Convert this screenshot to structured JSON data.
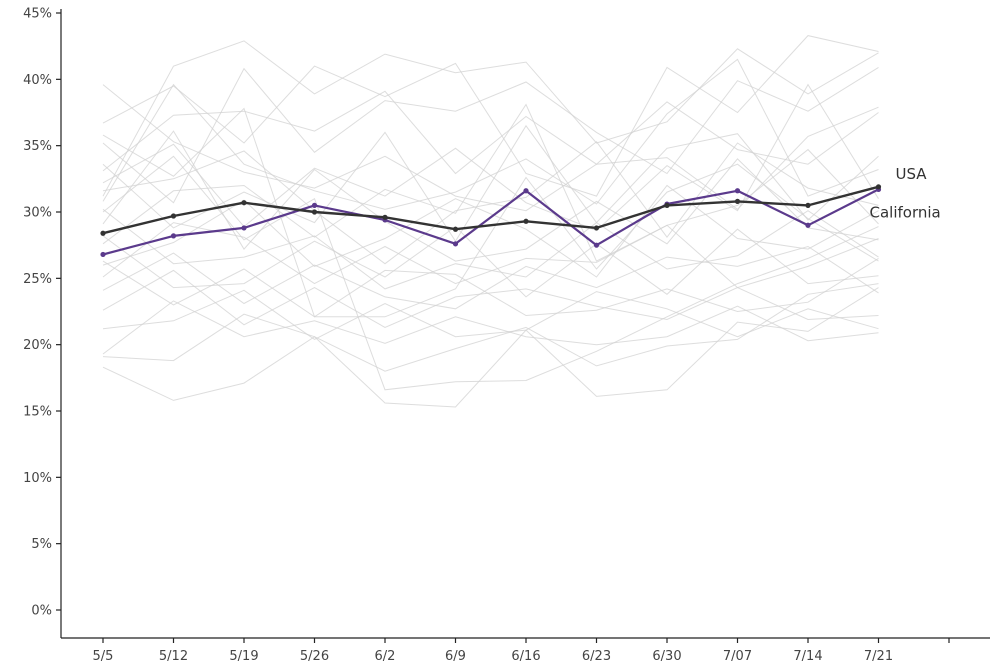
{
  "chart_data": {
    "type": "line",
    "title": "",
    "xlabel": "",
    "ylabel": "",
    "categories": [
      "5/5",
      "5/12",
      "5/19",
      "5/26",
      "6/2",
      "6/9",
      "6/16",
      "6/23",
      "6/30",
      "7/07",
      "7/14",
      "7/21"
    ],
    "ylim": [
      0,
      45
    ],
    "yticks": [
      0,
      5,
      10,
      15,
      20,
      25,
      30,
      35,
      40,
      45
    ],
    "ytick_labels": [
      "0%",
      "5%",
      "10%",
      "15%",
      "20%",
      "25%",
      "30%",
      "35%",
      "40%",
      "45%"
    ],
    "grid": false,
    "series": [
      {
        "name": "USA",
        "color": "#333333",
        "values": [
          28.4,
          29.7,
          30.7,
          30.0,
          29.6,
          28.7,
          29.3,
          28.8,
          30.5,
          30.8,
          30.5,
          31.9
        ]
      },
      {
        "name": "California",
        "color": "#5b3a8c",
        "values": [
          26.8,
          28.2,
          28.8,
          30.5,
          29.4,
          27.6,
          31.6,
          27.5,
          30.6,
          31.6,
          29.0,
          31.7
        ]
      }
    ],
    "background_series_color": "#d2d2d2",
    "background_series": [
      [
        39.6,
        35.3,
        33.0,
        31.8,
        34.2,
        31.2,
        30.1,
        33.6,
        34.1,
        30.2,
        35.7,
        37.9
      ],
      [
        31.2,
        41.0,
        42.9,
        38.9,
        41.9,
        40.5,
        41.3,
        35.2,
        36.8,
        42.3,
        38.9,
        42.0
      ],
      [
        36.7,
        39.5,
        35.2,
        41.0,
        38.7,
        41.2,
        32.9,
        31.2,
        40.9,
        37.5,
        43.3,
        42.1
      ],
      [
        35.2,
        30.7,
        40.8,
        34.5,
        38.4,
        37.6,
        39.8,
        36.0,
        32.9,
        39.9,
        37.6,
        40.9
      ],
      [
        33.1,
        37.3,
        37.6,
        36.1,
        39.1,
        32.9,
        37.2,
        33.6,
        38.3,
        34.7,
        33.6,
        37.5
      ],
      [
        30.8,
        39.6,
        33.6,
        31.6,
        30.2,
        31.5,
        34.0,
        30.6,
        37.4,
        41.5,
        31.2,
        33.2
      ],
      [
        33.6,
        28.8,
        31.5,
        29.2,
        36.0,
        27.8,
        36.5,
        29.2,
        34.8,
        35.9,
        29.4,
        34.2
      ],
      [
        32.2,
        35.1,
        28.9,
        33.3,
        31.2,
        34.8,
        30.7,
        28.6,
        33.5,
        30.1,
        39.6,
        31.0
      ],
      [
        31.6,
        32.5,
        34.6,
        30.1,
        26.1,
        30.1,
        31.1,
        35.3,
        28.1,
        35.2,
        31.8,
        30.5
      ],
      [
        27.6,
        31.6,
        32.0,
        28.1,
        31.7,
        29.9,
        38.1,
        26.3,
        29.0,
        30.5,
        34.7,
        29.1
      ],
      [
        29.1,
        36.1,
        27.2,
        33.2,
        29.3,
        26.3,
        27.2,
        30.8,
        27.6,
        34.0,
        28.8,
        27.9
      ],
      [
        26.0,
        27.7,
        30.9,
        25.9,
        28.0,
        31.0,
        28.7,
        25.1,
        32.0,
        28.0,
        27.2,
        30.1
      ],
      [
        30.2,
        26.1,
        26.6,
        28.2,
        24.2,
        26.1,
        25.1,
        29.2,
        25.7,
        26.7,
        30.1,
        26.6
      ],
      [
        25.1,
        29.2,
        28.1,
        24.6,
        27.4,
        24.6,
        26.5,
        26.2,
        29.0,
        24.3,
        25.9,
        28.0
      ],
      [
        28.2,
        24.3,
        24.6,
        27.8,
        25.1,
        28.9,
        23.6,
        27.6,
        23.8,
        28.7,
        24.6,
        25.2
      ],
      [
        24.1,
        26.9,
        23.1,
        26.0,
        23.6,
        22.7,
        25.9,
        24.3,
        26.6,
        25.9,
        27.4,
        23.9
      ],
      [
        26.3,
        23.0,
        25.7,
        22.1,
        25.6,
        25.3,
        22.2,
        22.6,
        24.2,
        22.5,
        23.2,
        26.5
      ],
      [
        22.6,
        25.6,
        21.5,
        24.3,
        21.3,
        23.6,
        24.2,
        22.9,
        21.9,
        24.3,
        21.9,
        22.2
      ],
      [
        21.2,
        21.8,
        24.1,
        20.4,
        23.1,
        20.6,
        21.1,
        24.0,
        22.7,
        20.6,
        22.7,
        21.2
      ],
      [
        19.3,
        23.3,
        20.6,
        21.8,
        20.1,
        22.1,
        20.6,
        20.0,
        20.6,
        22.9,
        20.3,
        20.9
      ],
      [
        19.1,
        18.8,
        22.3,
        20.6,
        18.0,
        19.7,
        21.3,
        18.4,
        19.9,
        20.4,
        23.8,
        24.6
      ],
      [
        18.3,
        15.8,
        17.1,
        20.6,
        15.6,
        15.3,
        21.1,
        16.1,
        16.6,
        21.7,
        21.0,
        24.3
      ],
      [
        30.0,
        34.2,
        27.9,
        31.0,
        16.6,
        17.2,
        17.3,
        19.5,
        22.1,
        24.6,
        26.5,
        28.9
      ],
      [
        35.8,
        32.7,
        37.8,
        22.1,
        22.1,
        24.2,
        32.6,
        25.7,
        31.5,
        33.6,
        29.5,
        26.3
      ]
    ]
  }
}
